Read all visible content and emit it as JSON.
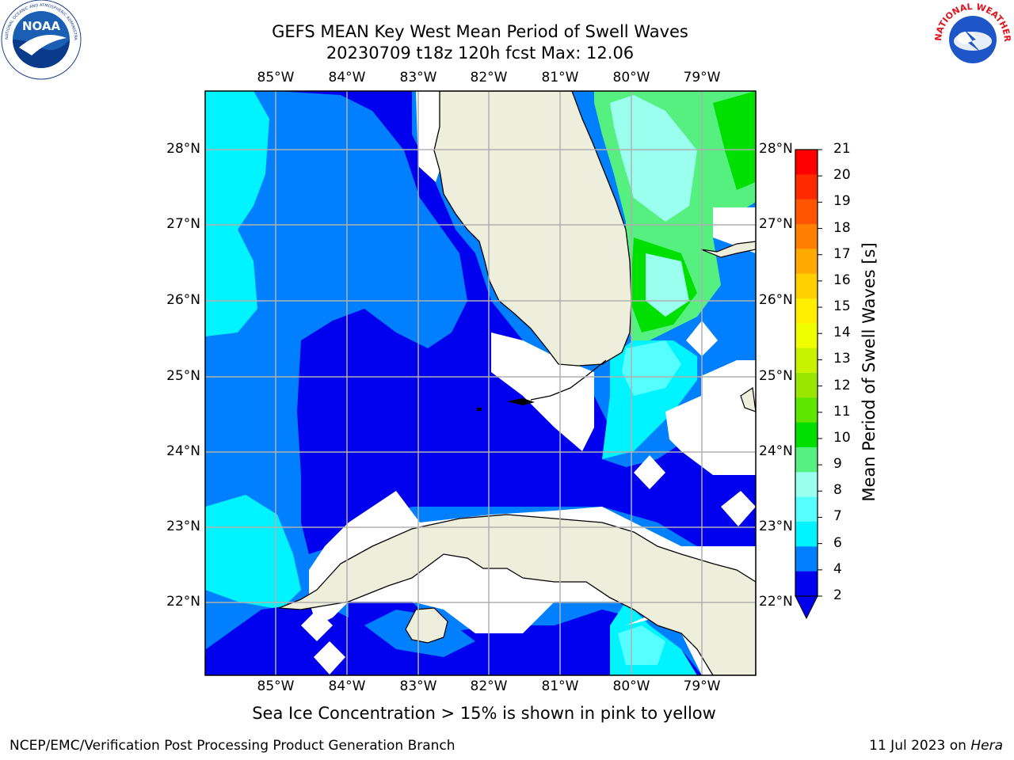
{
  "header": {
    "title_line1": "GEFS MEAN Key West Mean Period of Swell Waves",
    "title_line2": "20230709 t18z 120h fcst   Max: 12.06"
  },
  "logos": {
    "left": "NOAA",
    "left_ring_text": "NATIONAL OCEANIC AND ATMOSPHERIC ADMINISTRATION · U.S. DEPARTMENT OF COMMERCE",
    "right_ring_text": "NATIONAL WEATHER SERVICE"
  },
  "map": {
    "lon_labels": [
      "85°W",
      "84°W",
      "83°W",
      "82°W",
      "81°W",
      "80°W",
      "79°W"
    ],
    "lat_labels": [
      "28°N",
      "27°N",
      "26°N",
      "25°N",
      "24°N",
      "23°N",
      "22°N"
    ],
    "region": "Florida Keys / Straits of Florida / Cuba"
  },
  "colorbar": {
    "title": "Mean Period of Swell Waves [s]",
    "ticks": [
      "21",
      "20",
      "19",
      "18",
      "17",
      "16",
      "15",
      "14",
      "13",
      "12",
      "11",
      "10",
      "9",
      "8",
      "7",
      "6",
      "4",
      "2"
    ],
    "colors": [
      "#ff0000",
      "#ff2a00",
      "#ff5500",
      "#ff7f00",
      "#ffaa00",
      "#ffd000",
      "#ffee00",
      "#f0ff00",
      "#c8f200",
      "#9ae600",
      "#5ee600",
      "#00e000",
      "#55f080",
      "#9bfff0",
      "#55ffff",
      "#00f4ff",
      "#0080ff",
      "#0000ee"
    ]
  },
  "footer": {
    "ice_note": "Sea Ice Concentration > 15% is shown in pink to yellow",
    "left": "NCEP/EMC/Verification Post Processing Product Generation Branch",
    "right_date": "11 Jul 2023 on",
    "right_host": "Hera"
  }
}
